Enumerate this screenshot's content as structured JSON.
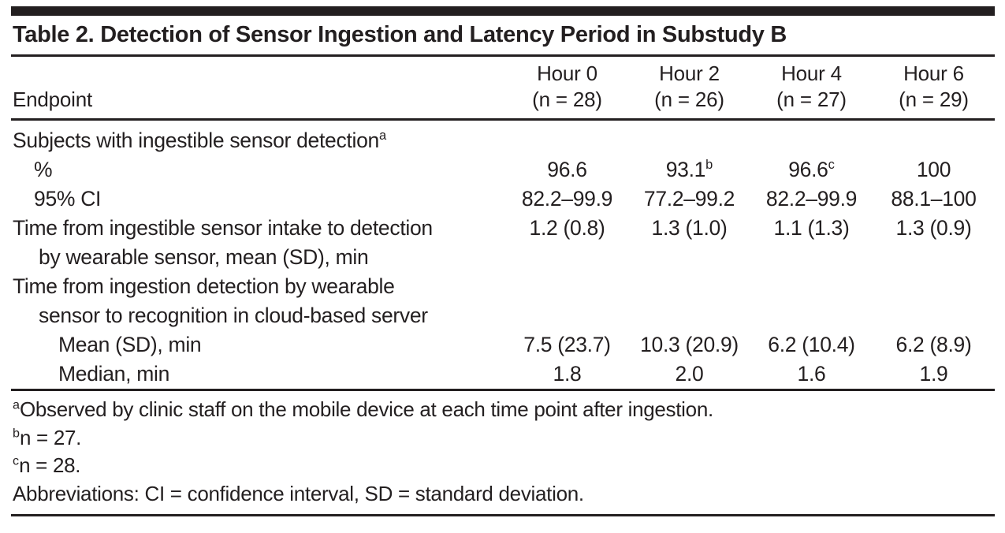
{
  "title": "Table 2. Detection of Sensor Ingestion and Latency Period in Substudy B",
  "header": {
    "endpoint_label": "Endpoint",
    "columns": [
      {
        "hour": "Hour 0",
        "n": "(n = 28)"
      },
      {
        "hour": "Hour 2",
        "n": "(n = 26)"
      },
      {
        "hour": "Hour 4",
        "n": "(n = 27)"
      },
      {
        "hour": "Hour 6",
        "n": "(n = 29)"
      }
    ]
  },
  "rows": [
    {
      "label": {
        "line1": "Subjects with ingestible sensor detection",
        "sup": "a"
      },
      "values": []
    },
    {
      "label": {
        "line1": "%"
      },
      "values": [
        {
          "text": "96.6"
        },
        {
          "text": "93.1",
          "sup": "b"
        },
        {
          "text": "96.6",
          "sup": "c"
        },
        {
          "text": "100"
        }
      ]
    },
    {
      "label": {
        "line1": "95% CI"
      },
      "values": [
        {
          "text": "82.2–99.9"
        },
        {
          "text": "77.2–99.2"
        },
        {
          "text": "82.2–99.9"
        },
        {
          "text": "88.1–100"
        }
      ]
    },
    {
      "label": {
        "line1": "Time from ingestible sensor intake to detection",
        "line2": "by wearable sensor, mean (SD), min"
      },
      "values": [
        {
          "text": "1.2 (0.8)"
        },
        {
          "text": "1.3 (1.0)"
        },
        {
          "text": "1.1 (1.3)"
        },
        {
          "text": "1.3 (0.9)"
        }
      ]
    },
    {
      "label": {
        "line1": "Time from ingestion detection by wearable",
        "line2": "sensor to recognition in cloud-based server"
      },
      "values": []
    },
    {
      "label": {
        "line1": "Mean (SD), min"
      },
      "values": [
        {
          "text": "7.5 (23.7)"
        },
        {
          "text": "10.3 (20.9)"
        },
        {
          "text": "6.2 (10.4)"
        },
        {
          "text": "6.2 (8.9)"
        }
      ]
    },
    {
      "label": {
        "line1": "Median, min"
      },
      "values": [
        {
          "text": "1.8"
        },
        {
          "text": "2.0"
        },
        {
          "text": "1.6"
        },
        {
          "text": "1.9"
        }
      ]
    }
  ],
  "footnotes": [
    {
      "sup": "a",
      "text": "Observed by clinic staff on the mobile device at each time point after ingestion."
    },
    {
      "sup": "b",
      "text": "n = 27."
    },
    {
      "sup": "c",
      "text": "n = 28."
    },
    {
      "text": "Abbreviations: CI = confidence interval, SD = standard deviation."
    }
  ],
  "colors": {
    "text": "#231f20",
    "rule": "#231f20",
    "background": "#ffffff"
  }
}
